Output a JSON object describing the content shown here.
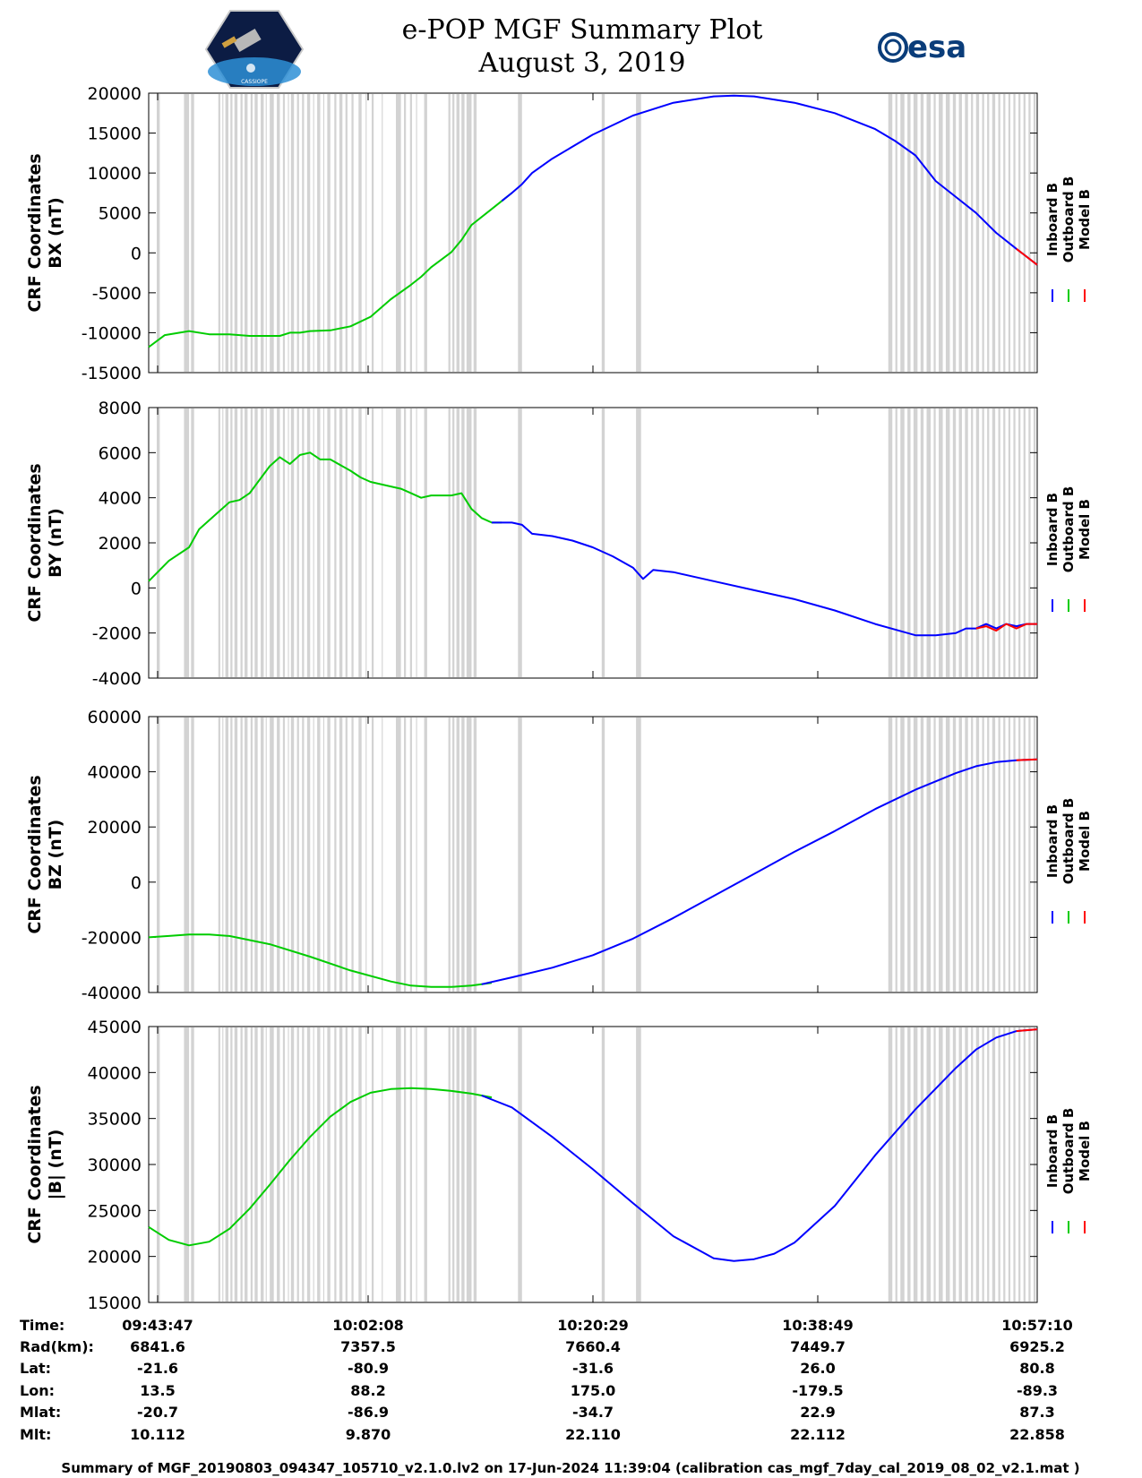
{
  "header": {
    "title_line1": "e-POP MGF Summary Plot",
    "title_line2": "August 3, 2019",
    "logo_left": "cassiope-mission-logo",
    "logo_right_text": "esa"
  },
  "colors": {
    "inboard": "#0000ff",
    "outboard": "#00cc00",
    "model": "#ff0000",
    "gap_shading": "#d3d3d3"
  },
  "legend": {
    "inboard": "Inboard B",
    "outboard": "Outboard B",
    "model": "Model B"
  },
  "chart_data": [
    {
      "type": "line",
      "id": "bx",
      "ylabel_line1": "CRF Coordinates",
      "ylabel_line2": "BX (nT)",
      "ylim": [
        -15000,
        20000
      ],
      "yticks": [
        -15000,
        -10000,
        -5000,
        0,
        5000,
        10000,
        15000,
        20000
      ],
      "xlim": [
        0,
        4403
      ],
      "series": [
        {
          "name": "Outboard B",
          "color_key": "outboard",
          "x": [
            0,
            80,
            200,
            300,
            400,
            500,
            600,
            650,
            700,
            750,
            800,
            900,
            1000,
            1100,
            1200,
            1300,
            1350,
            1400,
            1500,
            1550,
            1600,
            1700,
            1750,
            1800
          ],
          "y": [
            -11800,
            -10300,
            -9800,
            -10200,
            -10200,
            -10400,
            -10400,
            -10400,
            -10000,
            -10000,
            -9800,
            -9700,
            -9200,
            -8000,
            -5800,
            -4000,
            -3000,
            -1800,
            100,
            1600,
            3500,
            5500,
            6500,
            7500
          ]
        },
        {
          "name": "Inboard B",
          "color_key": "inboard",
          "x": [
            1750,
            1800,
            1850,
            1900,
            2000,
            2200,
            2400,
            2600,
            2800,
            2900,
            3000,
            3200,
            3400,
            3600,
            3700,
            3800,
            3900,
            4000,
            4100,
            4200,
            4300,
            4403
          ],
          "y": [
            6500,
            7500,
            8600,
            10000,
            11800,
            14800,
            17200,
            18800,
            19600,
            19700,
            19600,
            18800,
            17500,
            15500,
            14000,
            12200,
            9000,
            7000,
            5000,
            2500,
            500,
            -1500
          ]
        },
        {
          "name": "Model B",
          "color_key": "model",
          "x": [
            4300,
            4403
          ],
          "y": [
            500,
            -1500
          ]
        }
      ]
    },
    {
      "type": "line",
      "id": "by",
      "ylabel_line1": "CRF Coordinates",
      "ylabel_line2": "BY (nT)",
      "ylim": [
        -4000,
        8000
      ],
      "yticks": [
        -4000,
        -2000,
        0,
        2000,
        4000,
        6000,
        8000
      ],
      "xlim": [
        0,
        4403
      ],
      "series": [
        {
          "name": "Outboard B",
          "color_key": "outboard",
          "x": [
            0,
            100,
            200,
            250,
            300,
            400,
            450,
            500,
            550,
            600,
            650,
            700,
            750,
            800,
            850,
            900,
            1000,
            1050,
            1100,
            1200,
            1250,
            1300,
            1350,
            1400,
            1500,
            1550,
            1600,
            1650,
            1700,
            1750
          ],
          "y": [
            300,
            1200,
            1800,
            2600,
            3000,
            3800,
            3900,
            4200,
            4800,
            5400,
            5800,
            5500,
            5900,
            6000,
            5700,
            5700,
            5200,
            4900,
            4700,
            4500,
            4400,
            4200,
            4000,
            4100,
            4100,
            4200,
            3500,
            3100,
            2900,
            2900
          ]
        },
        {
          "name": "Inboard B",
          "color_key": "inboard",
          "x": [
            1700,
            1800,
            1850,
            1900,
            2000,
            2100,
            2200,
            2300,
            2400,
            2450,
            2500,
            2600,
            2800,
            3000,
            3200,
            3400,
            3600,
            3800,
            3900,
            4000,
            4050,
            4100,
            4150,
            4200,
            4250,
            4300,
            4350,
            4403
          ],
          "y": [
            2900,
            2900,
            2800,
            2400,
            2300,
            2100,
            1800,
            1400,
            900,
            400,
            800,
            700,
            300,
            -100,
            -500,
            -1000,
            -1600,
            -2100,
            -2100,
            -2000,
            -1800,
            -1800,
            -1600,
            -1800,
            -1600,
            -1700,
            -1600,
            -1600
          ]
        },
        {
          "name": "Model B",
          "color_key": "model",
          "x": [
            4100,
            4150,
            4200,
            4250,
            4300,
            4350,
            4403
          ],
          "y": [
            -1800,
            -1700,
            -1900,
            -1600,
            -1800,
            -1600,
            -1600
          ]
        }
      ]
    },
    {
      "type": "line",
      "id": "bz",
      "ylabel_line1": "CRF Coordinates",
      "ylabel_line2": "BZ (nT)",
      "ylim": [
        -40000,
        60000
      ],
      "yticks": [
        -40000,
        -20000,
        0,
        20000,
        40000,
        60000
      ],
      "xlim": [
        0,
        4403
      ],
      "series": [
        {
          "name": "Outboard B",
          "color_key": "outboard",
          "x": [
            0,
            100,
            200,
            300,
            400,
            600,
            800,
            1000,
            1200,
            1300,
            1400,
            1500,
            1600,
            1650,
            1700
          ],
          "y": [
            -20000,
            -19500,
            -19000,
            -19000,
            -19500,
            -22500,
            -27000,
            -32000,
            -36000,
            -37500,
            -38000,
            -38000,
            -37500,
            -37000,
            -36500
          ]
        },
        {
          "name": "Inboard B",
          "color_key": "inboard",
          "x": [
            1650,
            1800,
            2000,
            2200,
            2400,
            2600,
            2800,
            3000,
            3200,
            3400,
            3600,
            3800,
            4000,
            4100,
            4200,
            4300,
            4403
          ],
          "y": [
            -37000,
            -34500,
            -31000,
            -26500,
            -20500,
            -13000,
            -5000,
            3000,
            11000,
            18500,
            26500,
            33500,
            39500,
            42000,
            43500,
            44200,
            44500
          ]
        },
        {
          "name": "Model B",
          "color_key": "model",
          "x": [
            4300,
            4403
          ],
          "y": [
            44200,
            44500
          ]
        }
      ]
    },
    {
      "type": "line",
      "id": "btotal",
      "ylabel_line1": "CRF Coordinates",
      "ylabel_line2": "|B| (nT)",
      "ylim": [
        15000,
        45000
      ],
      "yticks": [
        15000,
        20000,
        25000,
        30000,
        35000,
        40000,
        45000
      ],
      "xlim": [
        0,
        4403
      ],
      "series": [
        {
          "name": "Outboard B",
          "color_key": "outboard",
          "x": [
            0,
            100,
            200,
            300,
            400,
            500,
            600,
            700,
            800,
            900,
            1000,
            1100,
            1200,
            1300,
            1400,
            1500,
            1600,
            1650,
            1700
          ],
          "y": [
            23200,
            21800,
            21200,
            21600,
            23000,
            25200,
            27800,
            30500,
            33000,
            35200,
            36800,
            37800,
            38200,
            38300,
            38200,
            38000,
            37700,
            37500,
            37300
          ]
        },
        {
          "name": "Inboard B",
          "color_key": "inboard",
          "x": [
            1650,
            1800,
            2000,
            2200,
            2400,
            2600,
            2800,
            2900,
            3000,
            3100,
            3200,
            3400,
            3600,
            3800,
            4000,
            4100,
            4200,
            4300,
            4403
          ],
          "y": [
            37500,
            36200,
            33000,
            29500,
            25800,
            22200,
            19800,
            19500,
            19700,
            20300,
            21500,
            25500,
            31000,
            36000,
            40500,
            42500,
            43800,
            44500,
            44700
          ]
        },
        {
          "name": "Model B",
          "color_key": "model",
          "x": [
            4300,
            4403
          ],
          "y": [
            44500,
            44700
          ]
        }
      ]
    }
  ],
  "data_gaps": [
    [
      40,
      55
    ],
    [
      175,
      200
    ],
    [
      210,
      225
    ],
    [
      345,
      355
    ],
    [
      365,
      370
    ],
    [
      380,
      395
    ],
    [
      405,
      415
    ],
    [
      425,
      440
    ],
    [
      455,
      465
    ],
    [
      475,
      490
    ],
    [
      505,
      515
    ],
    [
      525,
      540
    ],
    [
      555,
      570
    ],
    [
      580,
      585
    ],
    [
      600,
      620
    ],
    [
      635,
      650
    ],
    [
      665,
      675
    ],
    [
      690,
      695
    ],
    [
      705,
      720
    ],
    [
      735,
      745
    ],
    [
      760,
      770
    ],
    [
      785,
      800
    ],
    [
      815,
      820
    ],
    [
      835,
      850
    ],
    [
      865,
      870
    ],
    [
      885,
      900
    ],
    [
      920,
      930
    ],
    [
      945,
      960
    ],
    [
      975,
      985
    ],
    [
      1005,
      1015
    ],
    [
      1040,
      1055
    ],
    [
      1075,
      1080
    ],
    [
      1105,
      1115
    ],
    [
      1155,
      1160
    ],
    [
      1225,
      1250
    ],
    [
      1265,
      1275
    ],
    [
      1295,
      1305
    ],
    [
      1325,
      1330
    ],
    [
      1365,
      1380
    ],
    [
      1485,
      1495
    ],
    [
      1505,
      1515
    ],
    [
      1525,
      1540
    ],
    [
      1550,
      1565
    ],
    [
      1575,
      1600
    ],
    [
      1610,
      1625
    ],
    [
      1830,
      1850
    ],
    [
      2245,
      2260
    ],
    [
      2415,
      2440
    ],
    [
      3665,
      3685
    ],
    [
      3700,
      3710
    ],
    [
      3725,
      3745
    ],
    [
      3760,
      3775
    ],
    [
      3790,
      3810
    ],
    [
      3825,
      3840
    ],
    [
      3855,
      3875
    ],
    [
      3890,
      3900
    ],
    [
      3915,
      3935
    ],
    [
      3950,
      3970
    ],
    [
      3985,
      4000
    ],
    [
      4015,
      4030
    ],
    [
      4045,
      4060
    ],
    [
      4075,
      4085
    ],
    [
      4100,
      4115
    ],
    [
      4130,
      4140
    ],
    [
      4155,
      4165
    ],
    [
      4180,
      4195
    ],
    [
      4210,
      4220
    ],
    [
      4235,
      4245
    ],
    [
      4260,
      4270
    ],
    [
      4285,
      4295
    ],
    [
      4310,
      4320
    ],
    [
      4335,
      4345
    ],
    [
      4360,
      4370
    ],
    [
      4385,
      4395
    ]
  ],
  "ephemeris": {
    "labels": [
      "Time:",
      "Rad(km):",
      "Lat:",
      "Lon:",
      "Mlat:",
      "Mlt:"
    ],
    "columns": [
      [
        "09:43:47",
        "6841.6",
        "-21.6",
        "13.5",
        "-20.7",
        "10.112"
      ],
      [
        "10:02:08",
        "7357.5",
        "-80.9",
        "88.2",
        "-86.9",
        "9.870"
      ],
      [
        "10:20:29",
        "7660.4",
        "-31.6",
        "175.0",
        "-34.7",
        "22.110"
      ],
      [
        "10:38:49",
        "7449.7",
        "26.0",
        "-179.5",
        "22.9",
        "22.112"
      ],
      [
        "10:57:10",
        "6925.2",
        "80.8",
        "-89.3",
        "87.3",
        "22.858"
      ]
    ]
  },
  "footer": "Summary of MGF_20190803_094347_105710_v2.1.0.lv2 on 17-Jun-2024 11:39:04 (calibration cas_mgf_7day_cal_2019_08_02_v2.1.mat )"
}
